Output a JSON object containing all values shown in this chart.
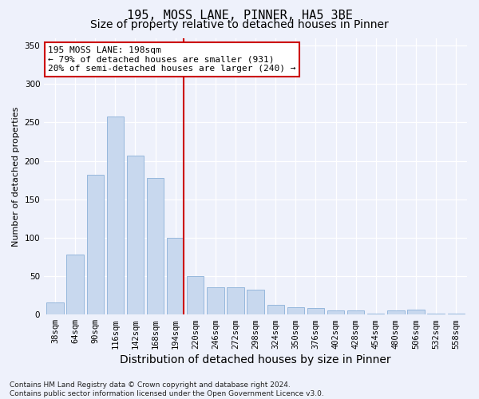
{
  "title_line1": "195, MOSS LANE, PINNER, HA5 3BE",
  "title_line2": "Size of property relative to detached houses in Pinner",
  "xlabel": "Distribution of detached houses by size in Pinner",
  "ylabel": "Number of detached properties",
  "footnote": "Contains HM Land Registry data © Crown copyright and database right 2024.\nContains public sector information licensed under the Open Government Licence v3.0.",
  "bin_labels": [
    "38sqm",
    "64sqm",
    "90sqm",
    "116sqm",
    "142sqm",
    "168sqm",
    "194sqm",
    "220sqm",
    "246sqm",
    "272sqm",
    "298sqm",
    "324sqm",
    "350sqm",
    "376sqm",
    "402sqm",
    "428sqm",
    "454sqm",
    "480sqm",
    "506sqm",
    "532sqm",
    "558sqm"
  ],
  "bar_values": [
    16,
    78,
    182,
    258,
    207,
    178,
    100,
    50,
    36,
    35,
    32,
    13,
    10,
    8,
    5,
    5,
    1,
    5,
    6,
    1,
    1
  ],
  "bar_color": "#c8d8ee",
  "bar_edge_color": "#8ab0d8",
  "marker_bin_index": 6,
  "marker_line_color": "#cc0000",
  "annotation_text": "195 MOSS LANE: 198sqm\n← 79% of detached houses are smaller (931)\n20% of semi-detached houses are larger (240) →",
  "annotation_box_color": "#ffffff",
  "annotation_box_edge": "#cc0000",
  "ylim": [
    0,
    360
  ],
  "yticks": [
    0,
    50,
    100,
    150,
    200,
    250,
    300,
    350
  ],
  "background_color": "#eef1fb",
  "grid_color": "#ffffff",
  "title1_fontsize": 11,
  "title2_fontsize": 10,
  "xlabel_fontsize": 10,
  "ylabel_fontsize": 8,
  "tick_fontsize": 7.5,
  "annotation_fontsize": 8,
  "footnote_fontsize": 6.5
}
